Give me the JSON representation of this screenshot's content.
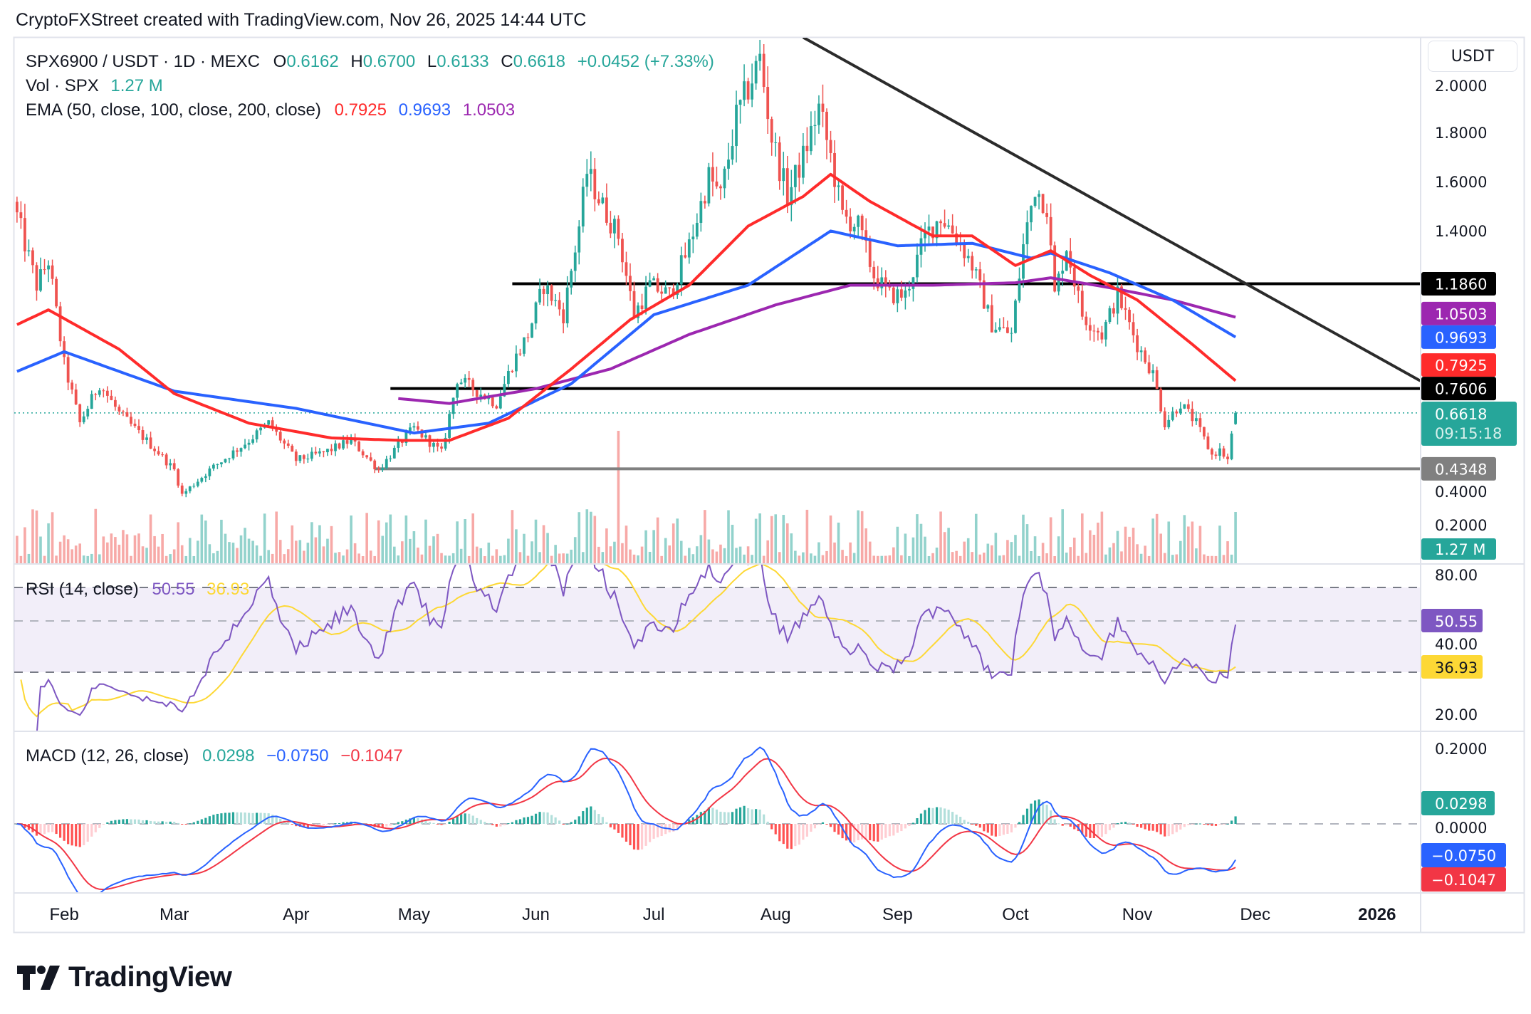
{
  "header": {
    "attribution": "CryptoFXStreet created with TradingView.com, Nov 26, 2025 14:44 UTC"
  },
  "legend": {
    "symbol": "SPX6900 / USDT · 1D · MEXC",
    "o_label": "O",
    "open": "0.6162",
    "h_label": "H",
    "high": "0.6700",
    "l_label": "L",
    "low": "0.6133",
    "c_label": "C",
    "close": "0.6618",
    "change": "+0.0452 (+7.33%)",
    "vol_label": "Vol · SPX",
    "vol": "1.27 M",
    "ema_label": "EMA (50, close, 100, close, 200, close)",
    "ema50": "0.7925",
    "ema100": "0.9693",
    "ema200": "1.0503"
  },
  "price_axis": {
    "currency": "USDT",
    "ticks": [
      "2.0000",
      "1.8000",
      "1.6000",
      "1.4000",
      "0.4000",
      "0.2000"
    ],
    "badges": [
      {
        "text": "1.1860",
        "bg": "#000000",
        "fg": "#ffffff",
        "price": 1.186
      },
      {
        "text": "1.0503",
        "bg": "#9c27b0",
        "fg": "#ffffff",
        "price": 1.0503
      },
      {
        "text": "0.9693",
        "bg": "#2962ff",
        "fg": "#ffffff",
        "price": 0.9693
      },
      {
        "text": "0.7925",
        "bg": "#ff2b2b",
        "fg": "#ffffff",
        "price": 0.7925
      },
      {
        "text": "0.7606",
        "bg": "#000000",
        "fg": "#ffffff",
        "price": 0.7606
      },
      {
        "text": "0.4348",
        "bg": "#808080",
        "fg": "#ffffff",
        "price": 0.4348
      }
    ],
    "last_price": "0.6618",
    "countdown": "09:15:18",
    "volume_badge": "1.27 M"
  },
  "rsi": {
    "label": "RSI (14, close)",
    "value": "50.55",
    "ma": "36.93",
    "ticks": [
      "80.00",
      "40.00",
      "20.00"
    ],
    "line_color": "#7e57c2",
    "ma_color": "#fdd835"
  },
  "macd": {
    "label": "MACD (12, 26, close)",
    "hist": "0.0298",
    "macd": "−0.0750",
    "signal": "−0.1047",
    "ticks": [
      "0.2000",
      "0.0000"
    ],
    "macd_color": "#2962ff",
    "signal_color": "#f23645"
  },
  "time_axis": {
    "labels": [
      {
        "text": "Feb",
        "date": "2025-02-01"
      },
      {
        "text": "Mar",
        "date": "2025-03-01"
      },
      {
        "text": "Apr",
        "date": "2025-04-01"
      },
      {
        "text": "May",
        "date": "2025-05-01"
      },
      {
        "text": "Jun",
        "date": "2025-06-01"
      },
      {
        "text": "Jul",
        "date": "2025-07-01"
      },
      {
        "text": "Aug",
        "date": "2025-08-01"
      },
      {
        "text": "Sep",
        "date": "2025-09-01"
      },
      {
        "text": "Oct",
        "date": "2025-10-01"
      },
      {
        "text": "Nov",
        "date": "2025-11-01"
      },
      {
        "text": "Dec",
        "date": "2025-12-01"
      },
      {
        "text": "2026",
        "date": "2026-01-01"
      }
    ]
  },
  "logo": "TradingView",
  "chart_data": {
    "type": "candlestick",
    "colors": {
      "up": "#26a69a",
      "down": "#ef5350",
      "ema50": "#ff2b2b",
      "ema100": "#2962ff",
      "ema200": "#9c27b0"
    },
    "ylim": [
      0.2,
      2.0
    ],
    "last_candle": {
      "date": "2025-11-26",
      "open": 0.6162,
      "high": 0.67,
      "low": 0.6133,
      "close": 0.6618
    },
    "price_path": [
      [
        "2025-01-20",
        1.46
      ],
      [
        "2025-01-25",
        1.18
      ],
      [
        "2025-01-28",
        1.28
      ],
      [
        "2025-02-01",
        0.86
      ],
      [
        "2025-02-05",
        0.62
      ],
      [
        "2025-02-10",
        0.78
      ],
      [
        "2025-02-15",
        0.66
      ],
      [
        "2025-02-20",
        0.58
      ],
      [
        "2025-02-25",
        0.5
      ],
      [
        "2025-03-01",
        0.43
      ],
      [
        "2025-03-03",
        0.33
      ],
      [
        "2025-03-10",
        0.43
      ],
      [
        "2025-03-20",
        0.55
      ],
      [
        "2025-03-25",
        0.62
      ],
      [
        "2025-04-01",
        0.47
      ],
      [
        "2025-04-08",
        0.5
      ],
      [
        "2025-04-15",
        0.55
      ],
      [
        "2025-04-22",
        0.43
      ],
      [
        "2025-04-28",
        0.55
      ],
      [
        "2025-05-01",
        0.6
      ],
      [
        "2025-05-08",
        0.5
      ],
      [
        "2025-05-12",
        0.8
      ],
      [
        "2025-05-16",
        0.76
      ],
      [
        "2025-05-22",
        0.7
      ],
      [
        "2025-05-26",
        0.86
      ],
      [
        "2025-05-30",
        0.98
      ],
      [
        "2025-06-03",
        1.18
      ],
      [
        "2025-06-08",
        1.06
      ],
      [
        "2025-06-12",
        1.42
      ],
      [
        "2025-06-14",
        1.64
      ],
      [
        "2025-06-18",
        1.5
      ],
      [
        "2025-06-22",
        1.38
      ],
      [
        "2025-06-26",
        1.06
      ],
      [
        "2025-06-30",
        1.18
      ],
      [
        "2025-07-05",
        1.14
      ],
      [
        "2025-07-10",
        1.34
      ],
      [
        "2025-07-15",
        1.62
      ],
      [
        "2025-07-18",
        1.54
      ],
      [
        "2025-07-22",
        1.86
      ],
      [
        "2025-07-25",
        1.98
      ],
      [
        "2025-07-28",
        2.1
      ],
      [
        "2025-07-31",
        1.78
      ],
      [
        "2025-08-04",
        1.54
      ],
      [
        "2025-08-08",
        1.7
      ],
      [
        "2025-08-12",
        1.9
      ],
      [
        "2025-08-15",
        1.7
      ],
      [
        "2025-08-18",
        1.46
      ],
      [
        "2025-08-22",
        1.42
      ],
      [
        "2025-08-26",
        1.22
      ],
      [
        "2025-08-30",
        1.14
      ],
      [
        "2025-09-03",
        1.14
      ],
      [
        "2025-09-08",
        1.38
      ],
      [
        "2025-09-12",
        1.46
      ],
      [
        "2025-09-16",
        1.38
      ],
      [
        "2025-09-20",
        1.26
      ],
      [
        "2025-09-25",
        1.02
      ],
      [
        "2025-09-30",
        0.98
      ],
      [
        "2025-10-03",
        1.34
      ],
      [
        "2025-10-06",
        1.58
      ],
      [
        "2025-10-09",
        1.5
      ],
      [
        "2025-10-11",
        1.14
      ],
      [
        "2025-10-14",
        1.34
      ],
      [
        "2025-10-18",
        1.06
      ],
      [
        "2025-10-23",
        0.98
      ],
      [
        "2025-10-27",
        1.14
      ],
      [
        "2025-11-01",
        0.94
      ],
      [
        "2025-11-05",
        0.82
      ],
      [
        "2025-11-08",
        0.62
      ],
      [
        "2025-11-12",
        0.7
      ],
      [
        "2025-11-16",
        0.62
      ],
      [
        "2025-11-20",
        0.49
      ],
      [
        "2025-11-22",
        0.51
      ],
      [
        "2025-11-24",
        0.47
      ],
      [
        "2025-11-26",
        0.6618
      ]
    ],
    "ema50": [
      [
        "2025-01-20",
        1.02
      ],
      [
        "2025-01-28",
        1.08
      ],
      [
        "2025-02-15",
        0.92
      ],
      [
        "2025-03-01",
        0.74
      ],
      [
        "2025-03-20",
        0.62
      ],
      [
        "2025-04-10",
        0.56
      ],
      [
        "2025-04-28",
        0.55
      ],
      [
        "2025-05-10",
        0.55
      ],
      [
        "2025-05-25",
        0.64
      ],
      [
        "2025-06-10",
        0.84
      ],
      [
        "2025-06-25",
        1.04
      ],
      [
        "2025-07-10",
        1.18
      ],
      [
        "2025-07-25",
        1.42
      ],
      [
        "2025-08-08",
        1.54
      ],
      [
        "2025-08-15",
        1.63
      ],
      [
        "2025-08-25",
        1.52
      ],
      [
        "2025-09-10",
        1.38
      ],
      [
        "2025-09-20",
        1.38
      ],
      [
        "2025-10-01",
        1.26
      ],
      [
        "2025-10-10",
        1.32
      ],
      [
        "2025-10-20",
        1.22
      ],
      [
        "2025-11-01",
        1.12
      ],
      [
        "2025-11-15",
        0.94
      ],
      [
        "2025-11-26",
        0.7925
      ]
    ],
    "ema100": [
      [
        "2025-01-20",
        0.83
      ],
      [
        "2025-02-01",
        0.91
      ],
      [
        "2025-03-01",
        0.75
      ],
      [
        "2025-04-01",
        0.68
      ],
      [
        "2025-05-01",
        0.58
      ],
      [
        "2025-05-20",
        0.62
      ],
      [
        "2025-06-10",
        0.78
      ],
      [
        "2025-07-01",
        1.06
      ],
      [
        "2025-07-25",
        1.18
      ],
      [
        "2025-08-15",
        1.4
      ],
      [
        "2025-09-01",
        1.34
      ],
      [
        "2025-09-20",
        1.35
      ],
      [
        "2025-10-05",
        1.29
      ],
      [
        "2025-10-10",
        1.31
      ],
      [
        "2025-10-25",
        1.23
      ],
      [
        "2025-11-10",
        1.12
      ],
      [
        "2025-11-26",
        0.9693
      ]
    ],
    "ema200": [
      [
        "2025-04-27",
        0.72
      ],
      [
        "2025-05-10",
        0.7
      ],
      [
        "2025-06-01",
        0.76
      ],
      [
        "2025-06-20",
        0.84
      ],
      [
        "2025-07-10",
        0.98
      ],
      [
        "2025-08-01",
        1.1
      ],
      [
        "2025-08-20",
        1.18
      ],
      [
        "2025-09-10",
        1.18
      ],
      [
        "2025-10-01",
        1.19
      ],
      [
        "2025-10-10",
        1.21
      ],
      [
        "2025-10-25",
        1.17
      ],
      [
        "2025-11-10",
        1.12
      ],
      [
        "2025-11-26",
        1.0503
      ]
    ],
    "levels": [
      {
        "price": 1.186,
        "from": "2025-05-26",
        "color": "#000000"
      },
      {
        "price": 0.7606,
        "from": "2025-04-25",
        "color": "#000000"
      },
      {
        "price": 0.4348,
        "from": "2025-04-21",
        "color": "#808080"
      }
    ],
    "trendline": {
      "from": [
        "2025-08-08",
        2.186
      ],
      "to": [
        "2026-01-12",
        0.792
      ],
      "color": "#2b2b2b"
    }
  }
}
